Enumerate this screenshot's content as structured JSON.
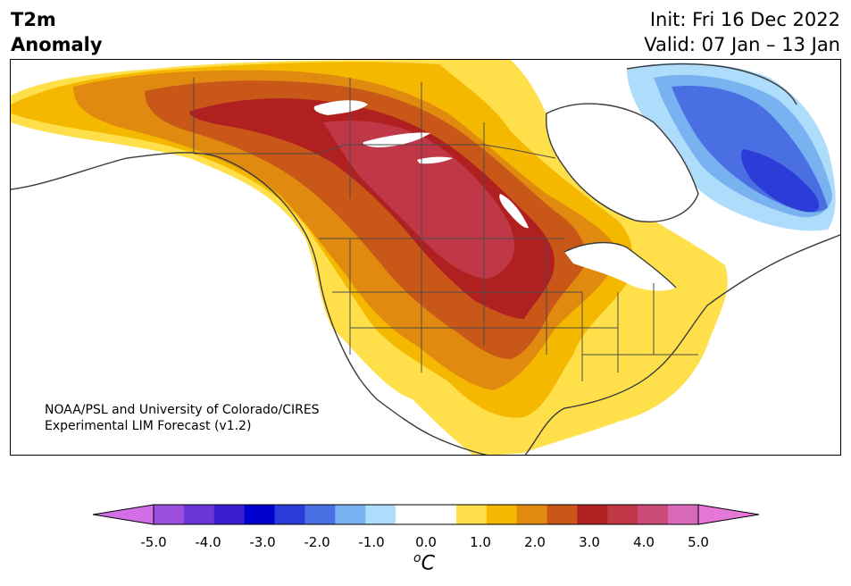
{
  "header": {
    "title_line1": "T2m",
    "title_line2": "Anomaly",
    "init": "Init: Fri 16 Dec 2022",
    "valid": "Valid: 07 Jan – 13 Jan"
  },
  "map": {
    "credit_line1": "NOAA/PSL and University of Colorado/CIRES",
    "credit_line2": "Experimental LIM Forecast (v1.2)"
  },
  "colorbar": {
    "ticks": [
      "-5.0",
      "-4.0",
      "-3.0",
      "-2.0",
      "-1.0",
      "0.0",
      "1.0",
      "2.0",
      "3.0",
      "4.0",
      "5.0"
    ],
    "unit_base": "C",
    "unit_sup": "o",
    "colors": [
      "#d36ee6",
      "#9b4fdc",
      "#6a38d8",
      "#3c1ed2",
      "#0000cf",
      "#2b3cd9",
      "#4a6fe3",
      "#78b2f1",
      "#aedcfb",
      "#ffffff",
      "#ffffff",
      "#ffe04a",
      "#f5b800",
      "#e08a10",
      "#c85718",
      "#b02020",
      "#c03848",
      "#cb4a78",
      "#d868b8",
      "#e676d8"
    ]
  }
}
